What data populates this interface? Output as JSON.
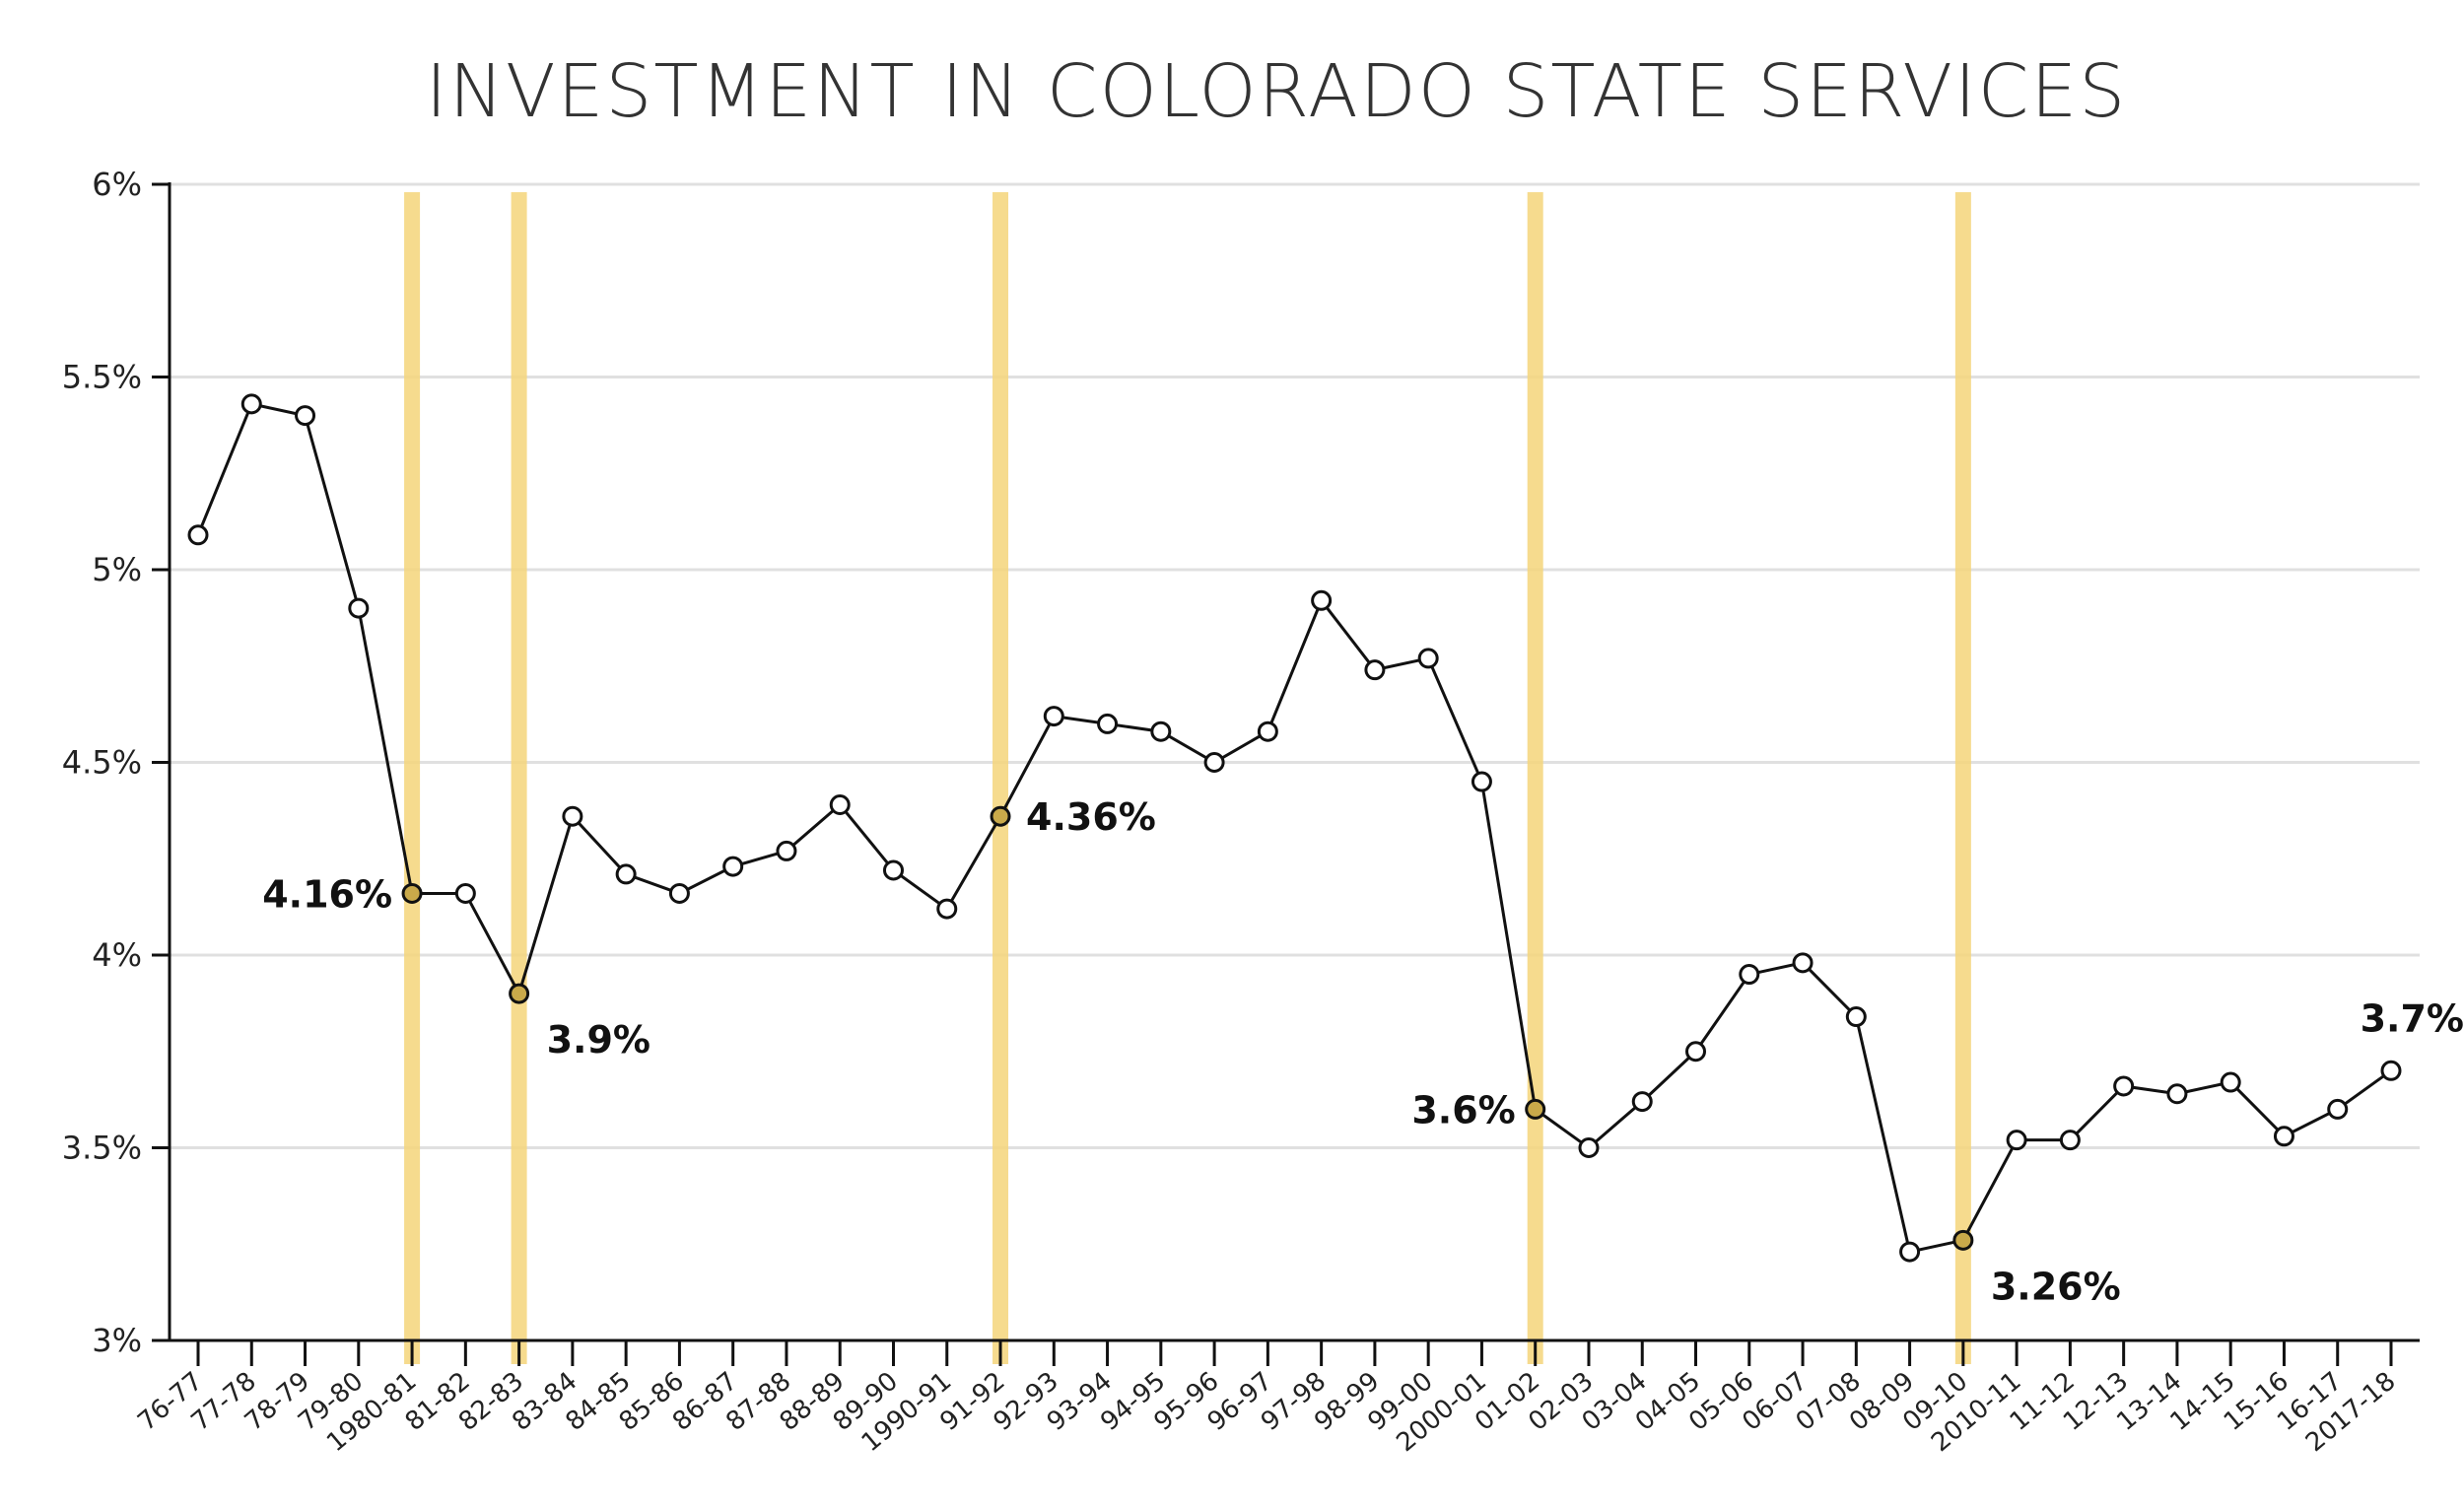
{
  "chart_data": {
    "type": "line",
    "title": "INVESTMENT IN COLORADO STATE SERVICES",
    "xlabel": "",
    "ylabel": "",
    "ylim": [
      3,
      6
    ],
    "yticks": [
      "3%",
      "3.5%",
      "4%",
      "4.5%",
      "5%",
      "5.5%",
      "6%"
    ],
    "ytick_values": [
      3,
      3.5,
      4,
      4.5,
      5,
      5.5,
      6
    ],
    "grid": "horizontal",
    "categories": [
      "76-77",
      "77-78",
      "78-79",
      "79-80",
      "1980-81",
      "81-82",
      "82-83",
      "83-84",
      "84-85",
      "85-86",
      "86-87",
      "87-88",
      "88-89",
      "89-90",
      "1990-91",
      "91-92",
      "92-93",
      "93-94",
      "94-95",
      "95-96",
      "96-97",
      "97-98",
      "98-99",
      "99-00",
      "2000-01",
      "01-02",
      "02-03",
      "03-04",
      "04-05",
      "05-06",
      "06-07",
      "07-08",
      "08-09",
      "09-10",
      "2010-11",
      "11-12",
      "12-13",
      "13-14",
      "14-15",
      "15-16",
      "16-17",
      "2017-18"
    ],
    "values": [
      5.09,
      5.43,
      5.4,
      4.9,
      4.16,
      4.16,
      3.9,
      4.36,
      4.21,
      4.16,
      4.23,
      4.27,
      4.39,
      4.22,
      4.12,
      4.36,
      4.62,
      4.6,
      4.58,
      4.5,
      4.58,
      4.92,
      4.74,
      4.77,
      4.45,
      3.6,
      3.5,
      3.62,
      3.75,
      3.95,
      3.98,
      3.84,
      3.23,
      3.26,
      3.52,
      3.52,
      3.66,
      3.64,
      3.67,
      3.53,
      3.6,
      3.7
    ],
    "line_color": "#111111",
    "marker": "open-circle",
    "highlight_color": "#f5d57a",
    "highlights": [
      "1980-81",
      "82-83",
      "91-92",
      "01-02",
      "09-10"
    ],
    "annotations": [
      {
        "category": "1980-81",
        "text": "4.16%",
        "side": "left"
      },
      {
        "category": "82-83",
        "text": "3.9%",
        "side": "right-below"
      },
      {
        "category": "91-92",
        "text": "4.36%",
        "side": "right"
      },
      {
        "category": "01-02",
        "text": "3.6%",
        "side": "left"
      },
      {
        "category": "09-10",
        "text": "3.26%",
        "side": "right-below"
      },
      {
        "category": "2017-18",
        "text": "3.7%",
        "side": "above"
      }
    ]
  }
}
